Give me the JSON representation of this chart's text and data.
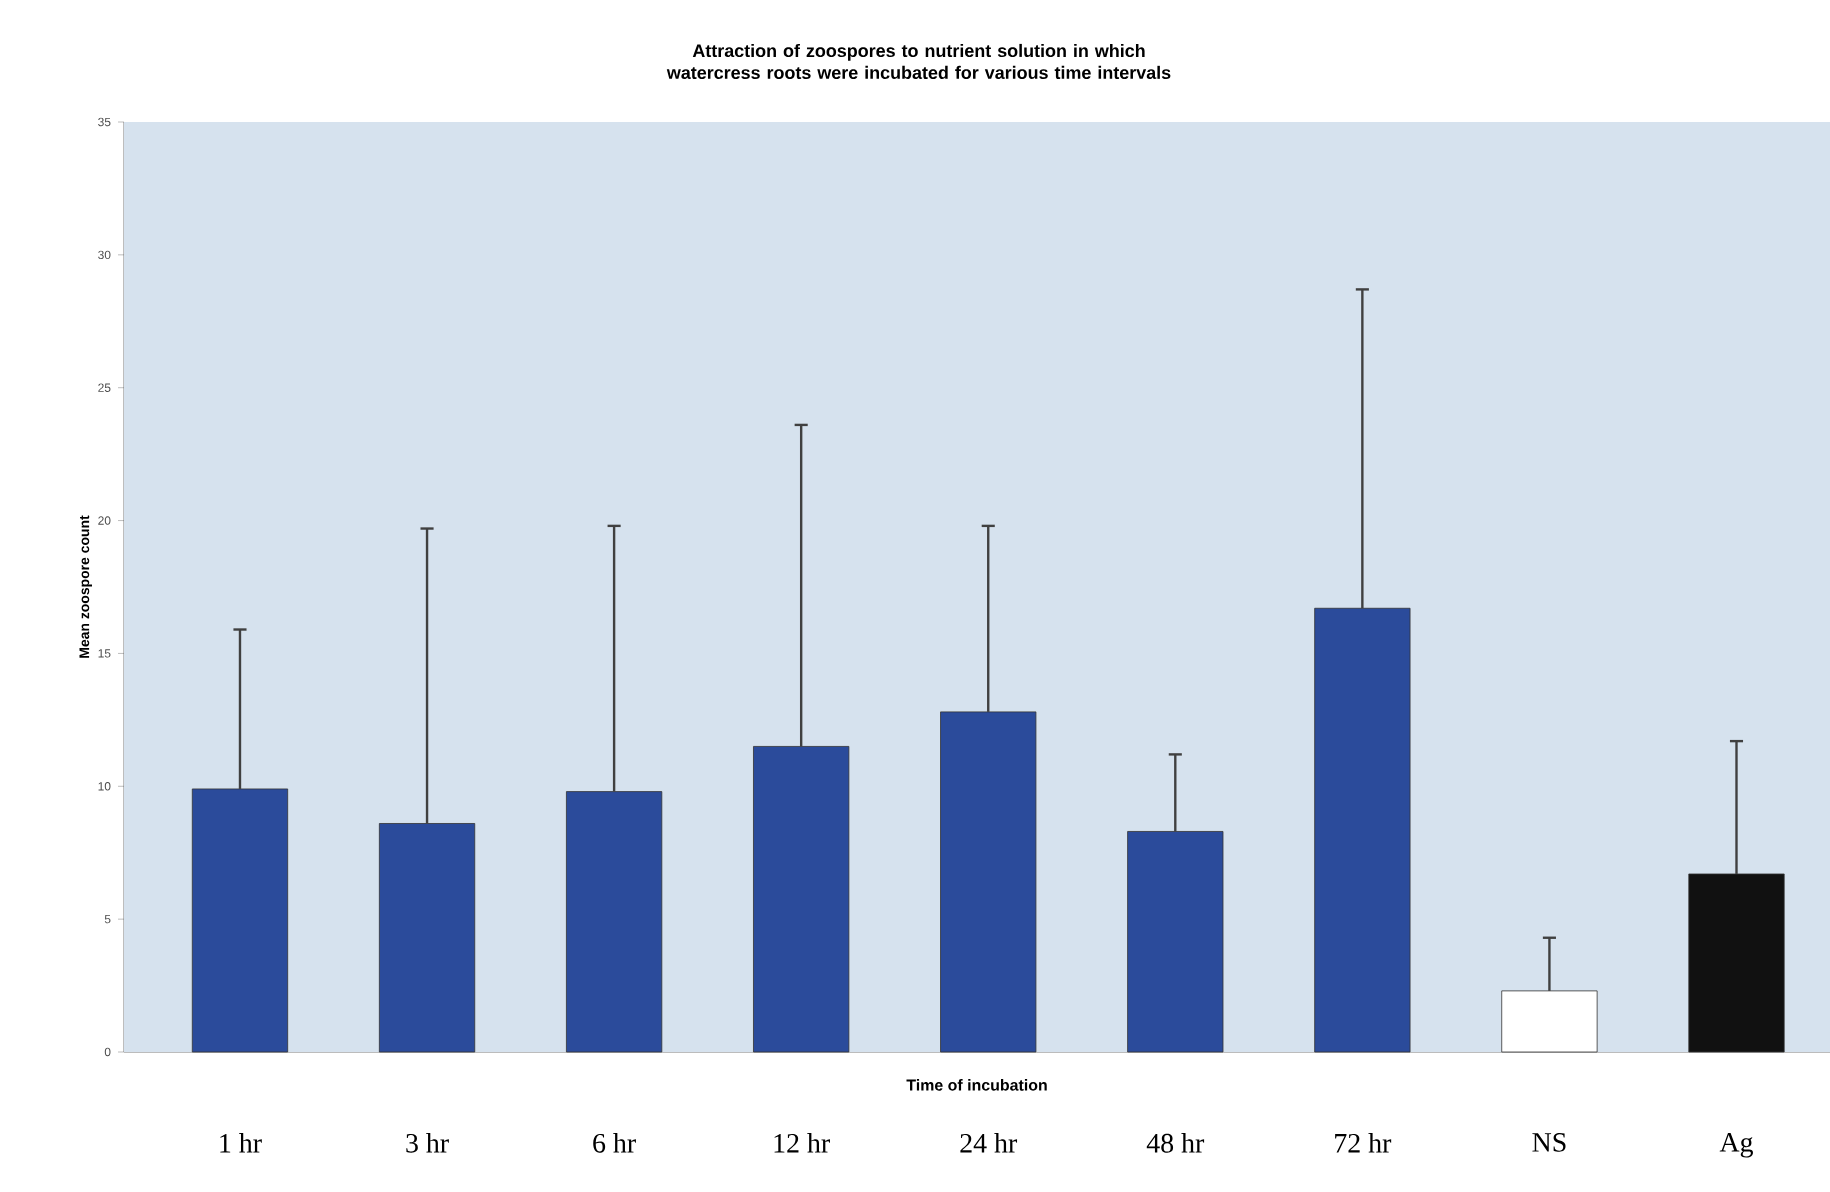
{
  "chart_data": {
    "type": "bar",
    "title": "Attraction of zoospores to nutrient solution in which watercress roots were incubated for various time intervals",
    "xlabel": "Time of incubation",
    "ylabel": "Mean zoospore count",
    "categories": [
      "1 hr",
      "3 hr",
      "6 hr",
      "12 hr",
      "24 hr",
      "48 hr",
      "72 hr",
      "NS",
      "Ag"
    ],
    "values": [
      9.9,
      8.6,
      9.8,
      11.5,
      12.8,
      8.3,
      16.7,
      2.3,
      6.7
    ],
    "errors": [
      [
        9.9,
        15.9
      ],
      [
        8.6,
        19.7
      ],
      [
        9.8,
        19.8
      ],
      [
        11.5,
        23.6
      ],
      [
        12.8,
        19.8
      ],
      [
        8.3,
        11.2
      ],
      [
        16.7,
        28.7
      ],
      [
        2.3,
        4.3
      ],
      [
        6.7,
        11.7
      ]
    ],
    "colors": [
      "#2b4b9b",
      "#2b4b9b",
      "#2b4b9b",
      "#2b4b9b",
      "#2b4b9b",
      "#2b4b9b",
      "#2b4b9b",
      "#ffffff",
      "#111111"
    ],
    "ylim": [
      0,
      35
    ],
    "yticks": [
      0,
      5,
      10,
      15,
      20,
      25,
      30,
      35
    ],
    "grid": false
  }
}
